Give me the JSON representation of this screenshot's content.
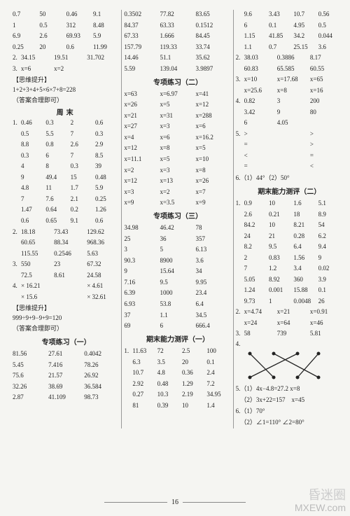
{
  "col1": {
    "rows1": [
      [
        "0.7",
        "50",
        "0.46",
        "9.1"
      ],
      [
        "1",
        "0.5",
        "312",
        "8.48"
      ],
      [
        "6.9",
        "2.6",
        "69.93",
        "5.9"
      ],
      [
        "0.25",
        "20",
        "0.6",
        "11.99"
      ]
    ],
    "line2": [
      "2.",
      "34.15",
      "19.51",
      "31.702"
    ],
    "line3": [
      "3.",
      "x=6",
      "x=2",
      ""
    ],
    "siwei1": "【思维提升】",
    "siwei1_expr": "1+2+3+4+5×6×7+8=228",
    "siwei1_note": "（答案合理即可）",
    "zhoumo": "周末",
    "rows2": [
      [
        "1.",
        "0.46",
        "0.3",
        "2",
        "0.6"
      ],
      [
        "",
        "0.5",
        "5.5",
        "7",
        "0.3"
      ],
      [
        "",
        "8.8",
        "0.8",
        "2.6",
        "2.9"
      ],
      [
        "",
        "0.3",
        "6",
        "7",
        "8.5"
      ],
      [
        "",
        "4",
        "8",
        "0.3",
        "39"
      ],
      [
        "",
        "9",
        "49.4",
        "15",
        "0.48"
      ],
      [
        "",
        "4.8",
        "11",
        "1.7",
        "5.9"
      ],
      [
        "",
        "7",
        "7.6",
        "2.1",
        "0.25"
      ],
      [
        "",
        "1.47",
        "0.64",
        "0.2",
        "1.26"
      ],
      [
        "",
        "0.6",
        "0.65",
        "9.1",
        "0.6"
      ]
    ],
    "rows3": [
      [
        "2.",
        "18.18",
        "73.43",
        "129.62"
      ],
      [
        "",
        "60.65",
        "88.34",
        "968.36"
      ],
      [
        "",
        "115.55",
        "0.2546",
        "5.63"
      ]
    ],
    "rows4": [
      [
        "3.",
        "550",
        "23",
        "67.32"
      ],
      [
        "",
        "72.5",
        "8.61",
        "24.58"
      ]
    ],
    "rows5": [
      [
        "4.",
        "× 16.21",
        "",
        "× 4.61"
      ],
      [
        "",
        "× 15.6",
        "",
        "× 32.61"
      ]
    ],
    "siwei2": "【思维提升】",
    "siwei2_expr": "999÷9+9−9+9=120",
    "siwei2_note": "（答案合理即可）",
    "zhuanxiang1": "专项练习（一）",
    "rows6": [
      [
        "81.56",
        "27.61",
        "0.4042"
      ],
      [
        "5.45",
        "7.416",
        "78.26"
      ],
      [
        "75.6",
        "21.57",
        "26.92"
      ],
      [
        "32.26",
        "38.69",
        "36.584"
      ],
      [
        "2.87",
        "41.109",
        "98.73"
      ]
    ]
  },
  "col2": {
    "rows1": [
      [
        "0.3502",
        "77.82",
        "83.65"
      ],
      [
        "84.37",
        "63.33",
        "0.1512"
      ],
      [
        "67.33",
        "1.666",
        "84.45"
      ],
      [
        "157.79",
        "119.33",
        "33.74"
      ],
      [
        "14.46",
        "51.1",
        "35.62"
      ],
      [
        "5.59",
        "139.04",
        "3.9897"
      ]
    ],
    "zhuanxiang2": "专项练习（二）",
    "rows2": [
      [
        "x=63",
        "x=6.97",
        "x=41"
      ],
      [
        "x=26",
        "x=5",
        "x=12"
      ],
      [
        "x=21",
        "x=31",
        "x=288"
      ],
      [
        "x=27",
        "x=3",
        "x=6"
      ],
      [
        "x=4",
        "x=6",
        "x=16.2"
      ],
      [
        "x=12",
        "x=8",
        "x=5"
      ],
      [
        "x=11.1",
        "x=5",
        "x=10"
      ],
      [
        "x=2",
        "x=3",
        "x=8"
      ],
      [
        "x=12",
        "x=13",
        "x=26"
      ],
      [
        "x=3",
        "x=2",
        "x=7"
      ],
      [
        "x=9",
        "x=3.5",
        "x=9"
      ]
    ],
    "zhuanxiang3": "专项练习（三）",
    "rows3": [
      [
        "34.98",
        "46.42",
        "78"
      ],
      [
        "25",
        "36",
        "357"
      ],
      [
        "3",
        "5",
        "6.13"
      ],
      [
        "90.3",
        "8900",
        "3.6"
      ],
      [
        "9",
        "15.64",
        "34"
      ],
      [
        "7.16",
        "9.5",
        "9.95"
      ],
      [
        "6.39",
        "1000",
        "23.4"
      ],
      [
        "6.93",
        "53.8",
        "6.4"
      ],
      [
        "37",
        "1.1",
        "34.5"
      ],
      [
        "69",
        "6",
        "666.4"
      ]
    ],
    "qimo1": "期末能力测评（一）",
    "rows4": [
      [
        "1.",
        "11.63",
        "72",
        "2.5",
        "100"
      ],
      [
        "",
        "6.3",
        "3.5",
        "20",
        "0.1"
      ],
      [
        "",
        "10.7",
        "4.8",
        "0.36",
        "2.4"
      ],
      [
        "",
        "2.92",
        "0.48",
        "1.29",
        "7.2"
      ],
      [
        "",
        "0.27",
        "10.3",
        "2.19",
        "34.95"
      ],
      [
        "",
        "81",
        "0.39",
        "10",
        "1.4"
      ]
    ]
  },
  "col3": {
    "rows1": [
      [
        "",
        "9.6",
        "3.43",
        "10.7",
        "0.56"
      ],
      [
        "",
        "6",
        "0.1",
        "4.95",
        "0.5"
      ],
      [
        "",
        "1.15",
        "41.85",
        "34.2",
        "0.044"
      ],
      [
        "",
        "1.1",
        "0.7",
        "25.15",
        "3.6"
      ]
    ],
    "rows2": [
      [
        "2.",
        "38.03",
        "0.3886",
        "8.17"
      ],
      [
        "",
        "60.83",
        "65.585",
        "60.55"
      ]
    ],
    "rows3": [
      [
        "3.",
        "x=10",
        "x=17.68",
        "x=65"
      ],
      [
        "",
        "x=25.6",
        "x=8",
        "x=16"
      ]
    ],
    "rows4": [
      [
        "4.",
        "0.82",
        "3",
        "200"
      ],
      [
        "",
        "3.42",
        "9",
        "80"
      ],
      [
        "",
        "6",
        "4.05",
        ""
      ]
    ],
    "rows5": [
      [
        "5.",
        ">",
        "",
        ">"
      ],
      [
        "",
        "=",
        "",
        ">"
      ],
      [
        "",
        "<",
        "",
        "="
      ],
      [
        "",
        "=",
        "",
        "<"
      ]
    ],
    "line6": "6.（1）44°（2）50°",
    "qimo2": "期末能力测评（二）",
    "rows6": [
      [
        "1.",
        "0.9",
        "10",
        "1.6",
        "5.1"
      ],
      [
        "",
        "2.6",
        "0.21",
        "18",
        "8.9"
      ],
      [
        "",
        "84.2",
        "10",
        "8.21",
        "54"
      ],
      [
        "",
        "24",
        "21",
        "0.28",
        "6.2"
      ],
      [
        "",
        "8.2",
        "9.5",
        "6.4",
        "9.4"
      ],
      [
        "",
        "2",
        "0.83",
        "1.56",
        "9"
      ],
      [
        "",
        "7",
        "1.2",
        "3.4",
        "0.02"
      ],
      [
        "",
        "5.05",
        "8.92",
        "360",
        "3.9"
      ],
      [
        "",
        "1.24",
        "0.001",
        "15.88",
        "0.1"
      ],
      [
        "",
        "9.73",
        "1",
        "0.0048",
        "26"
      ]
    ],
    "rows7": [
      [
        "2.",
        "x=4.74",
        "x=21",
        "x=0.91"
      ],
      [
        "",
        "x=24",
        "x=64",
        "x=46"
      ]
    ],
    "line8": [
      "3.",
      "58",
      "739",
      "5.81"
    ],
    "item4": "4.",
    "rows9a": "5.（1）4x−4.8=27.2    x=8",
    "rows9b": "   （2）3x+22=157    x=45",
    "rows10a": "6.（1）70°",
    "rows10b": "   （2）∠1=110° ∠2=80°"
  },
  "pagenum": "16",
  "watermark_cn": "昏迷圈",
  "watermark_en": "MXEW.com"
}
